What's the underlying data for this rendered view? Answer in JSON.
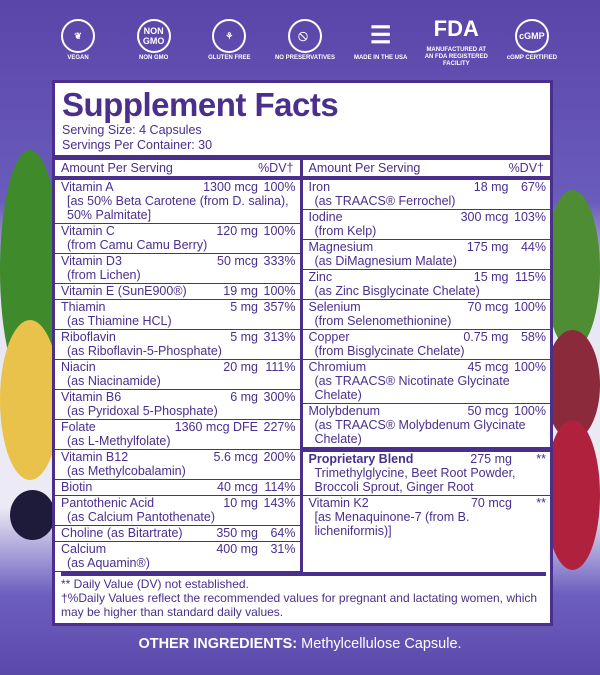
{
  "badges": [
    {
      "icon": "vegan-leaf-icon",
      "label": "VEGAN"
    },
    {
      "icon": "non-gmo-icon",
      "label": "NON GMO"
    },
    {
      "icon": "gluten-free-wheat-icon",
      "label": "GLUTEN FREE"
    },
    {
      "icon": "no-preservatives-flask-icon",
      "label": "NO PRESERVATIVES"
    },
    {
      "icon": "usa-flag-icon",
      "label": "MADE IN THE USA"
    },
    {
      "icon": "fda-icon",
      "label": "MANUFACTURED AT AN FDA REGISTERED FACILITY"
    },
    {
      "icon": "cgmp-icon",
      "label": "cGMP CERTIFIED"
    }
  ],
  "title": "Supplement Facts",
  "serving_size": "Serving Size: 4 Capsules",
  "servings_per_container": "Servings Per Container: 30",
  "header": {
    "amount": "Amount Per Serving",
    "dv": "%DV†"
  },
  "left": [
    {
      "name": "Vitamin A",
      "amount": "1300 mcg",
      "dv": "100%",
      "sub": "[as 50% Beta Carotene (from D. salina), 50% Palmitate]"
    },
    {
      "name": "Vitamin C",
      "amount": "120 mg",
      "dv": "100%",
      "sub": "(from Camu Camu Berry)"
    },
    {
      "name": "Vitamin D3",
      "amount": "50 mcg",
      "dv": "333%",
      "sub": "(from Lichen)"
    },
    {
      "name": "Vitamin E (SunE900®)",
      "amount": "19 mg",
      "dv": "100%",
      "sub": ""
    },
    {
      "name": "Thiamin",
      "amount": "5 mg",
      "dv": "357%",
      "sub": "(as Thiamine HCL)"
    },
    {
      "name": "Riboflavin",
      "amount": "5 mg",
      "dv": "313%",
      "sub": "(as Riboflavin-5-Phosphate)"
    },
    {
      "name": "Niacin",
      "amount": "20 mg",
      "dv": "111%",
      "sub": "(as Niacinamide)"
    },
    {
      "name": "Vitamin B6",
      "amount": "6 mg",
      "dv": "300%",
      "sub": "(as Pyridoxal 5-Phosphate)"
    },
    {
      "name": "Folate",
      "amount": "1360 mcg DFE",
      "dv": "227%",
      "sub": "(as L-Methylfolate)"
    },
    {
      "name": "Vitamin B12",
      "amount": "5.6 mcg",
      "dv": "200%",
      "sub": "(as Methylcobalamin)"
    },
    {
      "name": "Biotin",
      "amount": "40 mcg",
      "dv": "114%",
      "sub": ""
    },
    {
      "name": "Pantothenic Acid",
      "amount": "10 mg",
      "dv": "143%",
      "sub": "(as Calcium Pantothenate)"
    },
    {
      "name": "Choline (as Bitartrate)",
      "amount": "350 mg",
      "dv": "64%",
      "sub": ""
    },
    {
      "name": "Calcium",
      "amount": "400 mg",
      "dv": "31%",
      "sub": "(as Aquamin®)"
    }
  ],
  "right": [
    {
      "name": "Iron",
      "amount": "18 mg",
      "dv": "67%",
      "sub": "(as TRAACS® Ferrochel)"
    },
    {
      "name": "Iodine",
      "amount": "300 mcg",
      "dv": "103%",
      "sub": "(from Kelp)"
    },
    {
      "name": "Magnesium",
      "amount": "175 mg",
      "dv": "44%",
      "sub": "(as DiMagnesium Malate)"
    },
    {
      "name": "Zinc",
      "amount": "15 mg",
      "dv": "115%",
      "sub": "(as Zinc Bisglycinate Chelate)"
    },
    {
      "name": "Selenium",
      "amount": "70 mcg",
      "dv": "100%",
      "sub": "(from Selenomethionine)"
    },
    {
      "name": "Copper",
      "amount": "0.75 mg",
      "dv": "58%",
      "sub": "(from Bisglycinate Chelate)"
    },
    {
      "name": "Chromium",
      "amount": "45 mcg",
      "dv": "100%",
      "sub": "(as TRAACS® Nicotinate Glycinate Chelate)"
    },
    {
      "name": "Molybdenum",
      "amount": "50 mcg",
      "dv": "100%",
      "sub": "(as TRAACS® Molybdenum Glycinate Chelate)"
    }
  ],
  "blend": {
    "name": "Proprietary Blend",
    "amount": "275 mg",
    "dv": "**",
    "sub": "Trimethylglycine, Beet Root Powder, Broccoli Sprout, Ginger Root"
  },
  "k2": {
    "name": "Vitamin K2",
    "amount": "70 mcg",
    "dv": "**",
    "sub": "[as Menaquinone-7 (from B. licheniformis)]"
  },
  "footnote1": "** Daily Value (DV) not established.",
  "footnote2": "†%Daily Values reflect the recommended values for pregnant and lactating women, which may be higher than standard daily values.",
  "other_label": "OTHER INGREDIENTS:",
  "other_value": "Methylcellulose Capsule.",
  "colors": {
    "brand_purple": "#4a2f8c",
    "background_purple": "#5a45a8"
  }
}
